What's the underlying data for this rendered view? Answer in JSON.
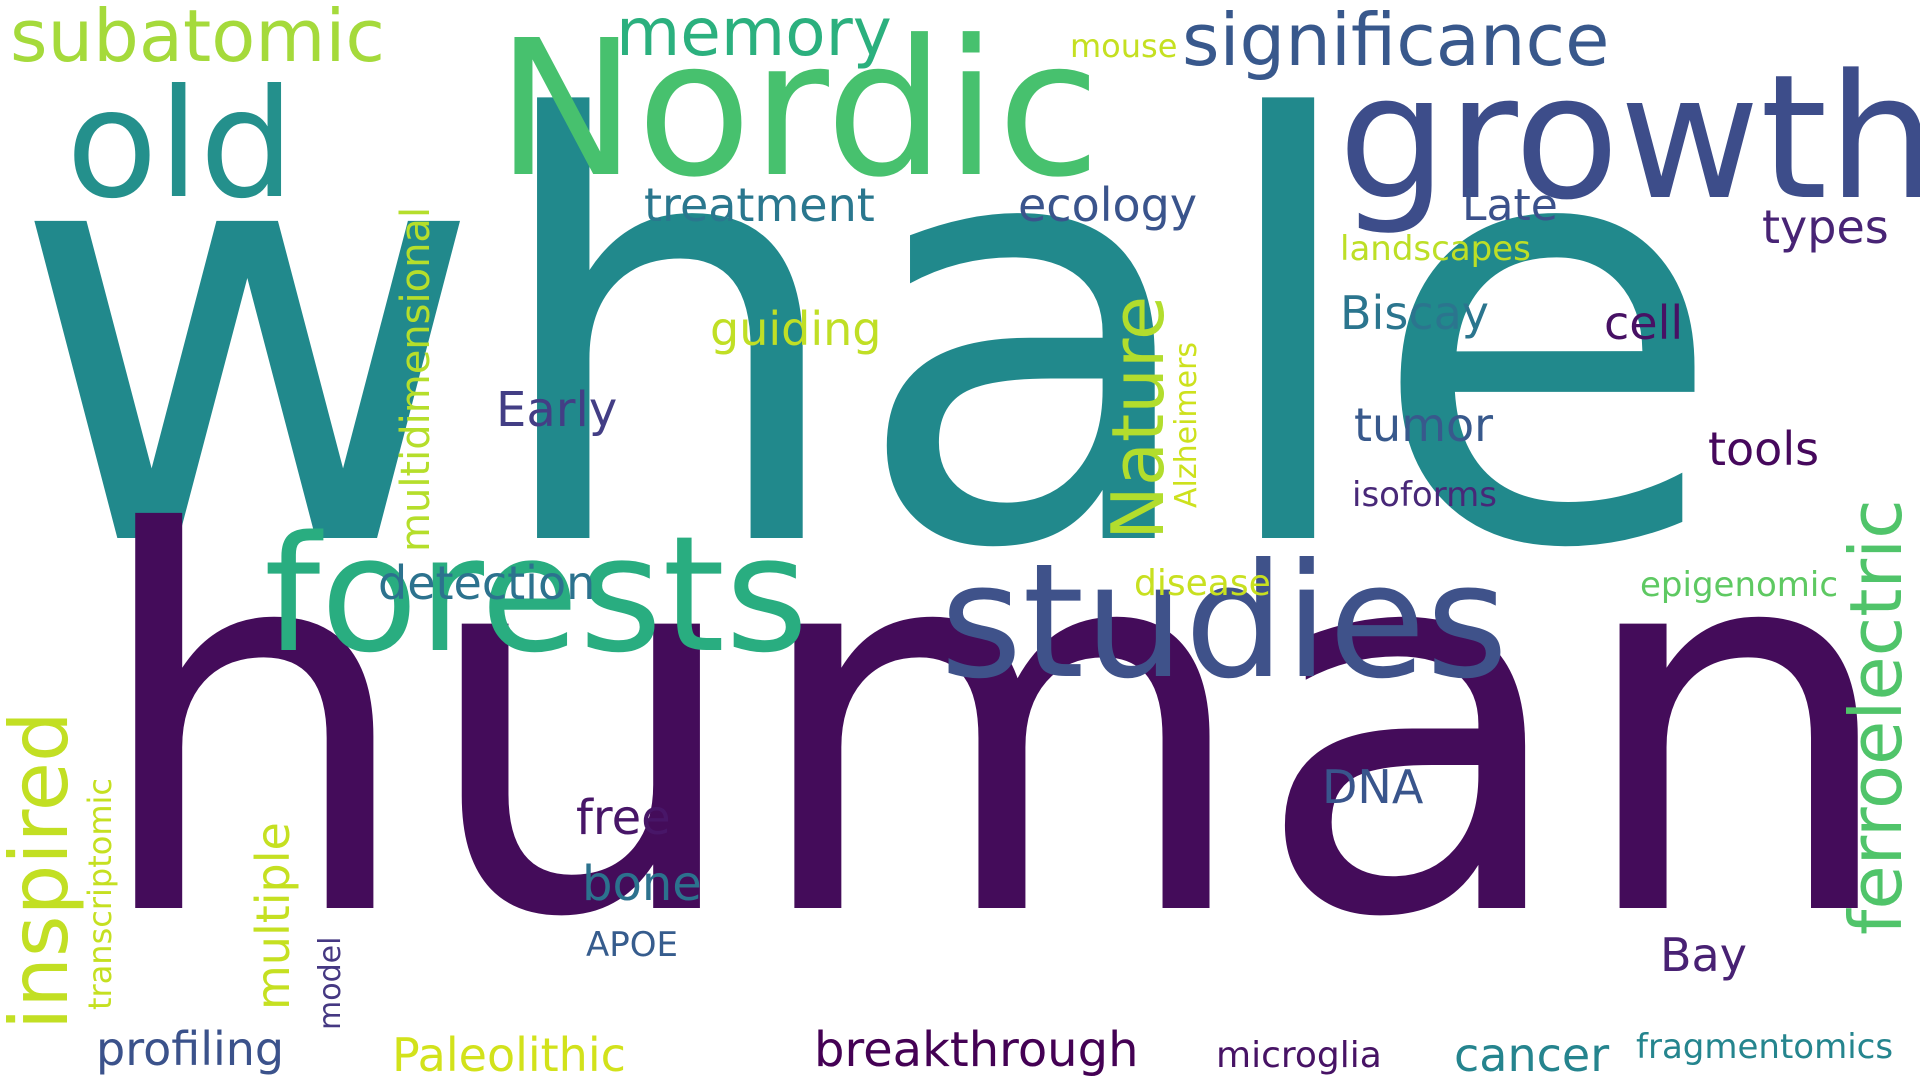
{
  "words": [
    {
      "text": "whale",
      "color": "#21898c"
    },
    {
      "text": "human",
      "color": "#440c5a"
    },
    {
      "text": "Nordic",
      "color": "#47c16e"
    },
    {
      "text": "growth",
      "color": "#3d4d8a"
    },
    {
      "text": "old",
      "color": "#24908c"
    },
    {
      "text": "forests",
      "color": "#29ad80"
    },
    {
      "text": "studies",
      "color": "#3f528a"
    },
    {
      "text": "subatomic",
      "color": "#a5da3b"
    },
    {
      "text": "memory",
      "color": "#2bb07e"
    },
    {
      "text": "significance",
      "color": "#38588c"
    },
    {
      "text": "mouse",
      "color": "#c5e021"
    },
    {
      "text": "treatment",
      "color": "#2a778e"
    },
    {
      "text": "ecology",
      "color": "#3a548c"
    },
    {
      "text": "Late",
      "color": "#3b518b"
    },
    {
      "text": "types",
      "color": "#482475"
    },
    {
      "text": "landscapes",
      "color": "#bddf26"
    },
    {
      "text": "multidimensional",
      "color": "#b5de2b"
    },
    {
      "text": "guiding",
      "color": "#c0df25"
    },
    {
      "text": "Nature",
      "color": "#b2dd2d"
    },
    {
      "text": "Alzheimers",
      "color": "#cde11d"
    },
    {
      "text": "Biscay",
      "color": "#2b758e"
    },
    {
      "text": "cell",
      "color": "#471164"
    },
    {
      "text": "ferroelectric",
      "color": "#50c46a"
    },
    {
      "text": "Early",
      "color": "#433e85"
    },
    {
      "text": "tumor",
      "color": "#38598c"
    },
    {
      "text": "tools",
      "color": "#46085c"
    },
    {
      "text": "isoforms",
      "color": "#482878"
    },
    {
      "text": "detection",
      "color": "#2c728e"
    },
    {
      "text": "disease",
      "color": "#c8e020"
    },
    {
      "text": "epigenomic",
      "color": "#5ec962"
    },
    {
      "text": "inspired",
      "color": "#c2df23"
    },
    {
      "text": "transcriptomic",
      "color": "#c5e021"
    },
    {
      "text": "multiple",
      "color": "#c5e021"
    },
    {
      "text": "DNA",
      "color": "#39558c"
    },
    {
      "text": "free",
      "color": "#481668"
    },
    {
      "text": "bone",
      "color": "#2c728e"
    },
    {
      "text": "APOE",
      "color": "#365c8d"
    },
    {
      "text": "Bay",
      "color": "#482173"
    },
    {
      "text": "model",
      "color": "#453882"
    },
    {
      "text": "profiling",
      "color": "#3b528b"
    },
    {
      "text": "Paleolithic",
      "color": "#d2e21b"
    },
    {
      "text": "breakthrough",
      "color": "#440154"
    },
    {
      "text": "microglia",
      "color": "#471365"
    },
    {
      "text": "cancer",
      "color": "#25848e"
    },
    {
      "text": "fragmentomics",
      "color": "#25858e"
    }
  ]
}
